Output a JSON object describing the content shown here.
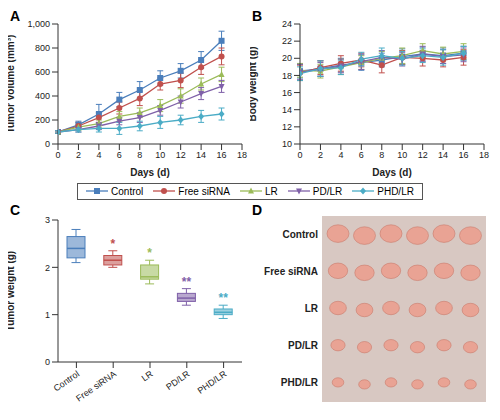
{
  "chart_data": [
    {
      "type": "line",
      "title": "A",
      "xlabel": "Days (d)",
      "ylabel": "Tumor volume (mm³)",
      "legend": "bottom",
      "x": [
        0,
        2,
        4,
        6,
        8,
        10,
        12,
        14,
        16
      ],
      "xlim": [
        0,
        18
      ],
      "xticks": [
        0,
        2,
        4,
        6,
        8,
        10,
        12,
        14,
        16,
        18
      ],
      "ylim": [
        0,
        1000
      ],
      "yticks": [
        0,
        200,
        400,
        600,
        800,
        {
          "value": 1000,
          "label": "1,000"
        }
      ],
      "series": [
        {
          "name": "Control",
          "color": "#4a7ebb",
          "marker": "square",
          "values": [
            100,
            160,
            250,
            370,
            450,
            550,
            610,
            700,
            860
          ],
          "errors": [
            10,
            30,
            80,
            60,
            70,
            60,
            60,
            70,
            80
          ]
        },
        {
          "name": "Free siRNA",
          "color": "#c0504d",
          "marker": "circle",
          "values": [
            100,
            150,
            220,
            300,
            380,
            500,
            530,
            640,
            730
          ],
          "errors": [
            10,
            30,
            40,
            50,
            60,
            50,
            60,
            60,
            70
          ]
        },
        {
          "name": "LR",
          "color": "#9bbb59",
          "marker": "triangle",
          "values": [
            100,
            140,
            170,
            230,
            260,
            320,
            400,
            500,
            580
          ],
          "errors": [
            10,
            25,
            30,
            40,
            40,
            50,
            60,
            50,
            60
          ]
        },
        {
          "name": "PD/LR",
          "color": "#7f60a8",
          "marker": "triangle-down",
          "values": [
            100,
            120,
            150,
            190,
            220,
            280,
            350,
            420,
            480
          ],
          "errors": [
            10,
            20,
            30,
            30,
            40,
            40,
            50,
            50,
            50
          ]
        },
        {
          "name": "PHD/LR",
          "color": "#4bacc6",
          "marker": "diamond",
          "values": [
            100,
            120,
            130,
            130,
            150,
            180,
            200,
            230,
            250
          ],
          "errors": [
            10,
            20,
            30,
            50,
            40,
            50,
            40,
            50,
            50
          ]
        }
      ]
    },
    {
      "type": "line",
      "title": "B",
      "xlabel": "Days (d)",
      "ylabel": "Body weight (g)",
      "x": [
        0,
        2,
        4,
        6,
        8,
        10,
        12,
        14,
        16
      ],
      "xlim": [
        0,
        18
      ],
      "xticks": [
        0,
        2,
        4,
        6,
        8,
        10,
        12,
        14,
        16,
        18
      ],
      "ylim": [
        10,
        24
      ],
      "yticks": [
        10,
        12,
        14,
        16,
        18,
        20,
        22,
        24
      ],
      "series": [
        {
          "color": "#4a7ebb",
          "marker": "square",
          "values": [
            18.5,
            18.8,
            19.2,
            19.5,
            19.8,
            20.2,
            20.5,
            20.3,
            20.6
          ],
          "errors": [
            0.8,
            0.9,
            0.8,
            0.9,
            0.8,
            0.9,
            0.8,
            0.9,
            0.8
          ]
        },
        {
          "color": "#c0504d",
          "marker": "circle",
          "values": [
            18.3,
            18.9,
            19.4,
            19.8,
            19.2,
            20.1,
            20.0,
            19.8,
            20.1
          ],
          "errors": [
            0.9,
            0.8,
            0.9,
            0.8,
            0.9,
            0.8,
            0.9,
            0.8,
            0.9
          ]
        },
        {
          "color": "#9bbb59",
          "marker": "triangle",
          "values": [
            18.6,
            18.5,
            19.0,
            19.5,
            20.0,
            20.3,
            20.9,
            20.5,
            20.8
          ],
          "errors": [
            0.8,
            0.8,
            0.9,
            0.8,
            0.8,
            0.9,
            0.8,
            0.8,
            0.9
          ]
        },
        {
          "color": "#7f60a8",
          "marker": "triangle-down",
          "values": [
            18.4,
            18.7,
            19.1,
            19.6,
            20.1,
            19.9,
            20.5,
            20.2,
            20.4
          ],
          "errors": [
            0.9,
            0.8,
            0.8,
            0.9,
            0.8,
            0.8,
            0.9,
            0.8,
            0.8
          ]
        },
        {
          "color": "#4bacc6",
          "marker": "diamond",
          "values": [
            18.2,
            18.8,
            18.9,
            19.9,
            20.3,
            20.0,
            20.3,
            20.1,
            20.6
          ],
          "errors": [
            0.8,
            0.9,
            0.8,
            0.8,
            0.9,
            0.8,
            0.8,
            0.9,
            0.8
          ]
        }
      ]
    },
    {
      "type": "box",
      "title": "C",
      "ylabel": "Tumor weight (g)",
      "categories": [
        "Control",
        "Free siRNA",
        "LR",
        "PD/LR",
        "PHD/LR"
      ],
      "colors": [
        "#4a7ebb",
        "#c0504d",
        "#9bbb59",
        "#7f60a8",
        "#4bacc6"
      ],
      "ylim": [
        0,
        3
      ],
      "yticks": [
        0,
        1,
        2,
        3
      ],
      "min": [
        2.1,
        2.0,
        1.65,
        1.2,
        0.92
      ],
      "q1": [
        2.2,
        2.05,
        1.75,
        1.28,
        1.0
      ],
      "median": [
        2.4,
        2.15,
        1.8,
        1.35,
        1.05
      ],
      "q3": [
        2.65,
        2.25,
        2.05,
        1.45,
        1.12
      ],
      "max": [
        2.8,
        2.35,
        2.15,
        1.55,
        1.2
      ],
      "annotations": [
        null,
        "*",
        "*",
        "**",
        "**"
      ]
    },
    {
      "type": "image",
      "title": "D",
      "categories": [
        "Control",
        "Free siRNA",
        "LR",
        "PD/LR",
        "PHD/LR"
      ]
    }
  ]
}
